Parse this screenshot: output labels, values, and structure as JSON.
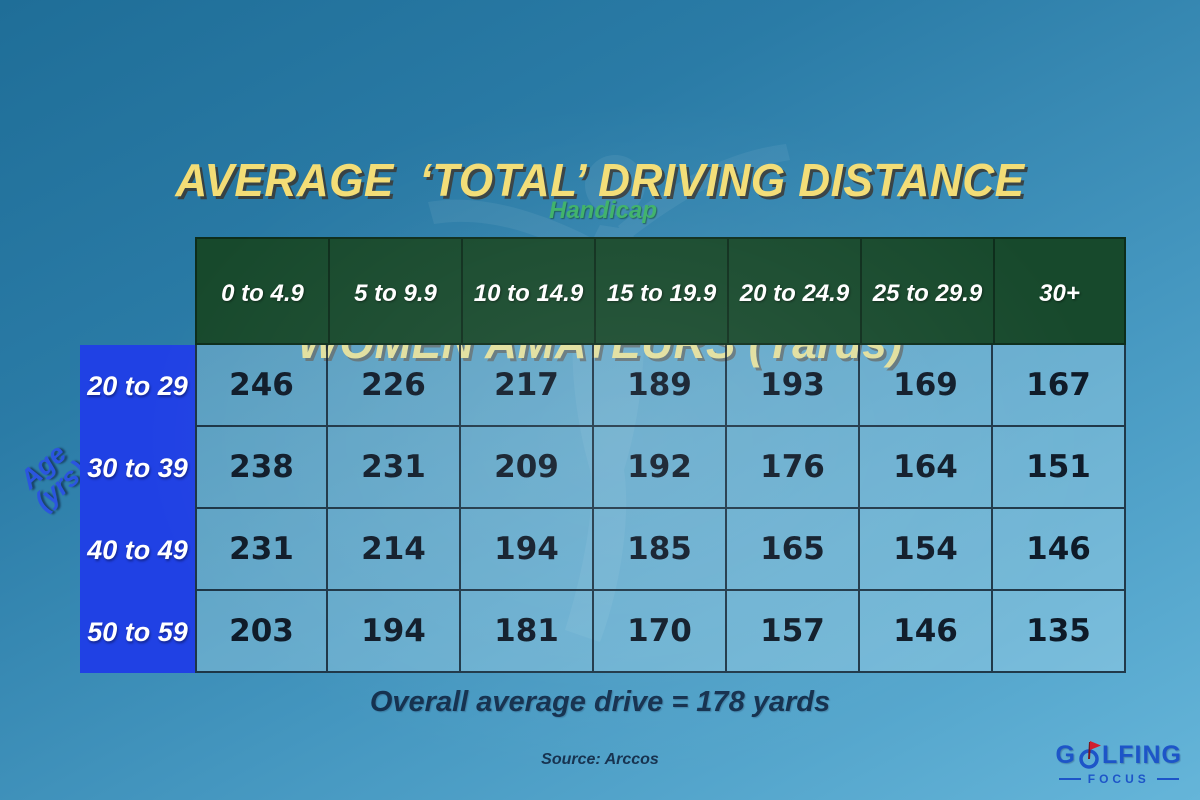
{
  "page": {
    "title_line1": "AVERAGE  ‘TOTAL’ DRIVING DISTANCE",
    "title_line2": "WOMEN AMATEURS (Yards)"
  },
  "labels": {
    "handicap": "Handicap",
    "age_line1": "Age",
    "age_line2": "(yrs)"
  },
  "chart_data": {
    "type": "table",
    "title": "AVERAGE ‘TOTAL’ DRIVING DISTANCE WOMEN AMATEURS (Yards)",
    "column_group_label": "Handicap",
    "row_group_label": "Age (yrs)",
    "columns": [
      "0 to 4.9",
      "5 to 9.9",
      "10 to 14.9",
      "15 to 19.9",
      "20 to 24.9",
      "25 to 29.9",
      "30+"
    ],
    "rows": [
      "20 to 29",
      "30 to 39",
      "40 to 49",
      "50 to 59"
    ],
    "values": [
      [
        246,
        226,
        217,
        189,
        193,
        169,
        167
      ],
      [
        238,
        231,
        209,
        192,
        176,
        164,
        151
      ],
      [
        231,
        214,
        194,
        185,
        165,
        154,
        146
      ],
      [
        203,
        194,
        181,
        170,
        157,
        146,
        135
      ]
    ],
    "annotation": "Overall average drive = 178 yards",
    "source": "Source: Arccos"
  },
  "footer": {
    "average_note": "Overall average drive = 178 yards",
    "source": "Source: Arccos"
  },
  "logo": {
    "prefix": "G",
    "suffix": "LFING",
    "subtitle": "FOCUS"
  },
  "colors": {
    "background_top": "#1f6e98",
    "background_bottom": "#65b5d9",
    "title_yellow": "#f3dd76",
    "header_green": "#17492c",
    "age_blue": "#2041e4",
    "handicap_green": "#3cb168",
    "value_text": "#0e1a28",
    "footer_navy": "#14304e",
    "logo_blue": "#1d55c8",
    "flag_red": "#d1202f"
  }
}
